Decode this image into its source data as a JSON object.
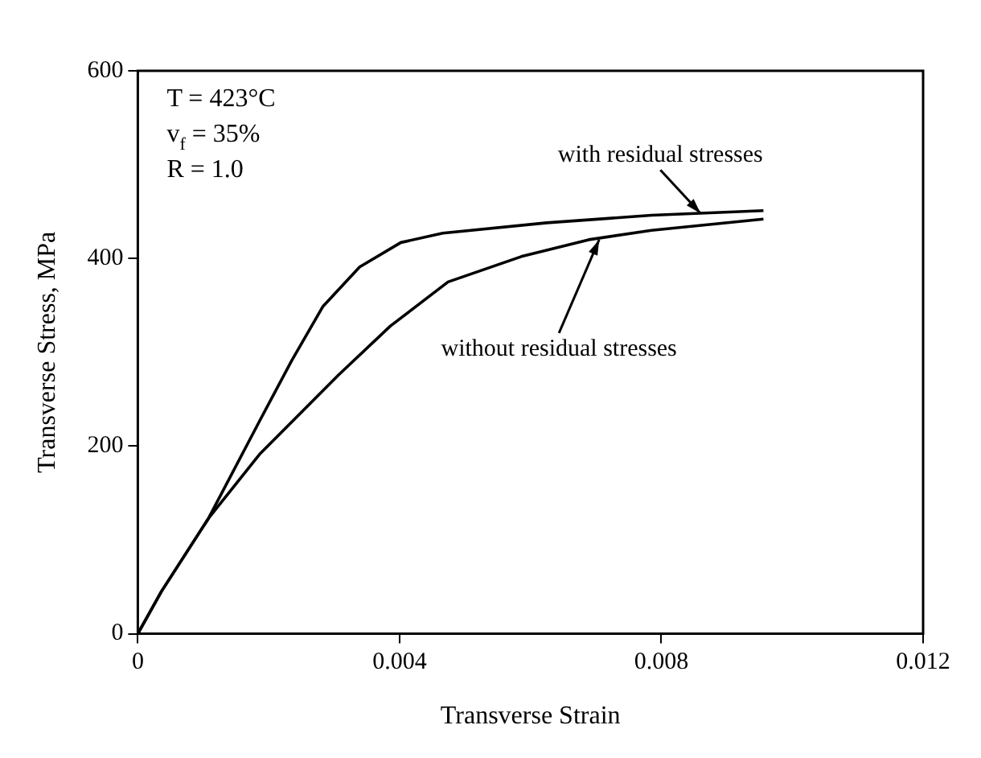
{
  "chart_data": {
    "type": "line",
    "xlabel": "Transverse Strain",
    "ylabel": "Transverse Stress, MPa",
    "xlim": [
      0,
      0.012
    ],
    "xticks": [
      0,
      0.004,
      0.008,
      0.012
    ],
    "ylim": [
      0,
      600
    ],
    "yticks": [
      0,
      200,
      400,
      600
    ],
    "grid": false,
    "legend": false,
    "marker": "none",
    "line_style": "solid",
    "series": [
      {
        "color": "#000000",
        "x": [
          0,
          0.00036,
          0.00108,
          0.00187,
          0.00235,
          0.00283,
          0.00339,
          0.00402,
          0.00466,
          0.00625,
          0.00785,
          0.00956
        ],
        "values": [
          0,
          45,
          123,
          228,
          291,
          349,
          391,
          417,
          427,
          438,
          446,
          451
        ]
      },
      {
        "color": "#000000",
        "x": [
          0,
          0.00036,
          0.00108,
          0.00187,
          0.00307,
          0.00386,
          0.00474,
          0.00586,
          0.00689,
          0.00785,
          0.00956
        ],
        "values": [
          0,
          45,
          123,
          192,
          276,
          328,
          375,
          402,
          420,
          430,
          442
        ]
      }
    ],
    "annotations": [
      "T = 423°C",
      "v$_{f}$ = 35%",
      "R = 1.0",
      {
        "text": "with residual stresses",
        "x": 0.0086,
        "y": 448
      },
      {
        "text": "without residual stresses",
        "x": 0.00705,
        "y": 420
      }
    ]
  }
}
